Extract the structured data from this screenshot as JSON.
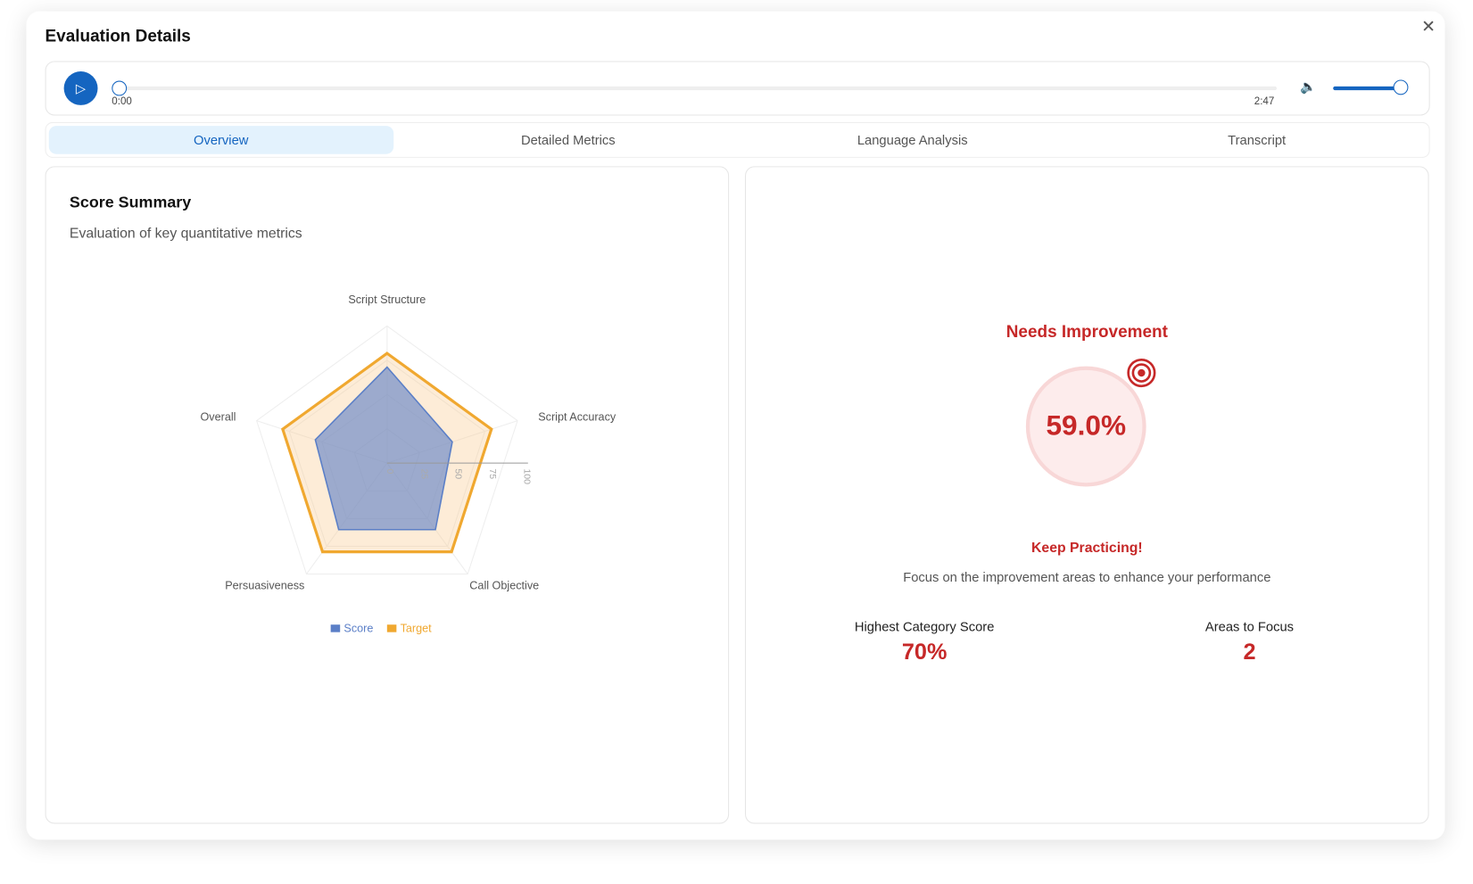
{
  "dialog": {
    "title": "Evaluation Details",
    "close_icon": "close-icon"
  },
  "player": {
    "current_time": "0:00",
    "duration": "2:47",
    "progress": 0,
    "volume": 1.0,
    "accent": "#1565c0"
  },
  "tabs": [
    {
      "label": "Overview",
      "active": true
    },
    {
      "label": "Detailed Metrics"
    },
    {
      "label": "Language Analysis"
    },
    {
      "label": "Transcript"
    }
  ],
  "score_summary": {
    "title": "Score Summary",
    "subtitle": "Evaluation of key quantitative metrics"
  },
  "chart_data": {
    "type": "radar",
    "categories": [
      "Script Structure",
      "Script Accuracy",
      "Call Objective",
      "Persuasiveness",
      "Overall"
    ],
    "radial_ticks": [
      0,
      25,
      50,
      75,
      100
    ],
    "range": [
      0,
      100
    ],
    "series": [
      {
        "name": "Score",
        "values": [
          70,
          50,
          60,
          60,
          55
        ],
        "color": "#5b7fc7"
      },
      {
        "name": "Target",
        "values": [
          80,
          80,
          80,
          80,
          80
        ],
        "color": "#f0a830"
      }
    ],
    "legend": "bottom"
  },
  "result": {
    "status": "Needs Improvement",
    "score": "59.0%",
    "icon": "target-icon",
    "headline": "Keep Practicing!",
    "message": "Focus on the improvement areas to enhance your performance",
    "accent": "#c62828",
    "stats": [
      {
        "label": "Highest Category Score",
        "value": "70%"
      },
      {
        "label": "Areas to Focus",
        "value": "2"
      }
    ]
  }
}
